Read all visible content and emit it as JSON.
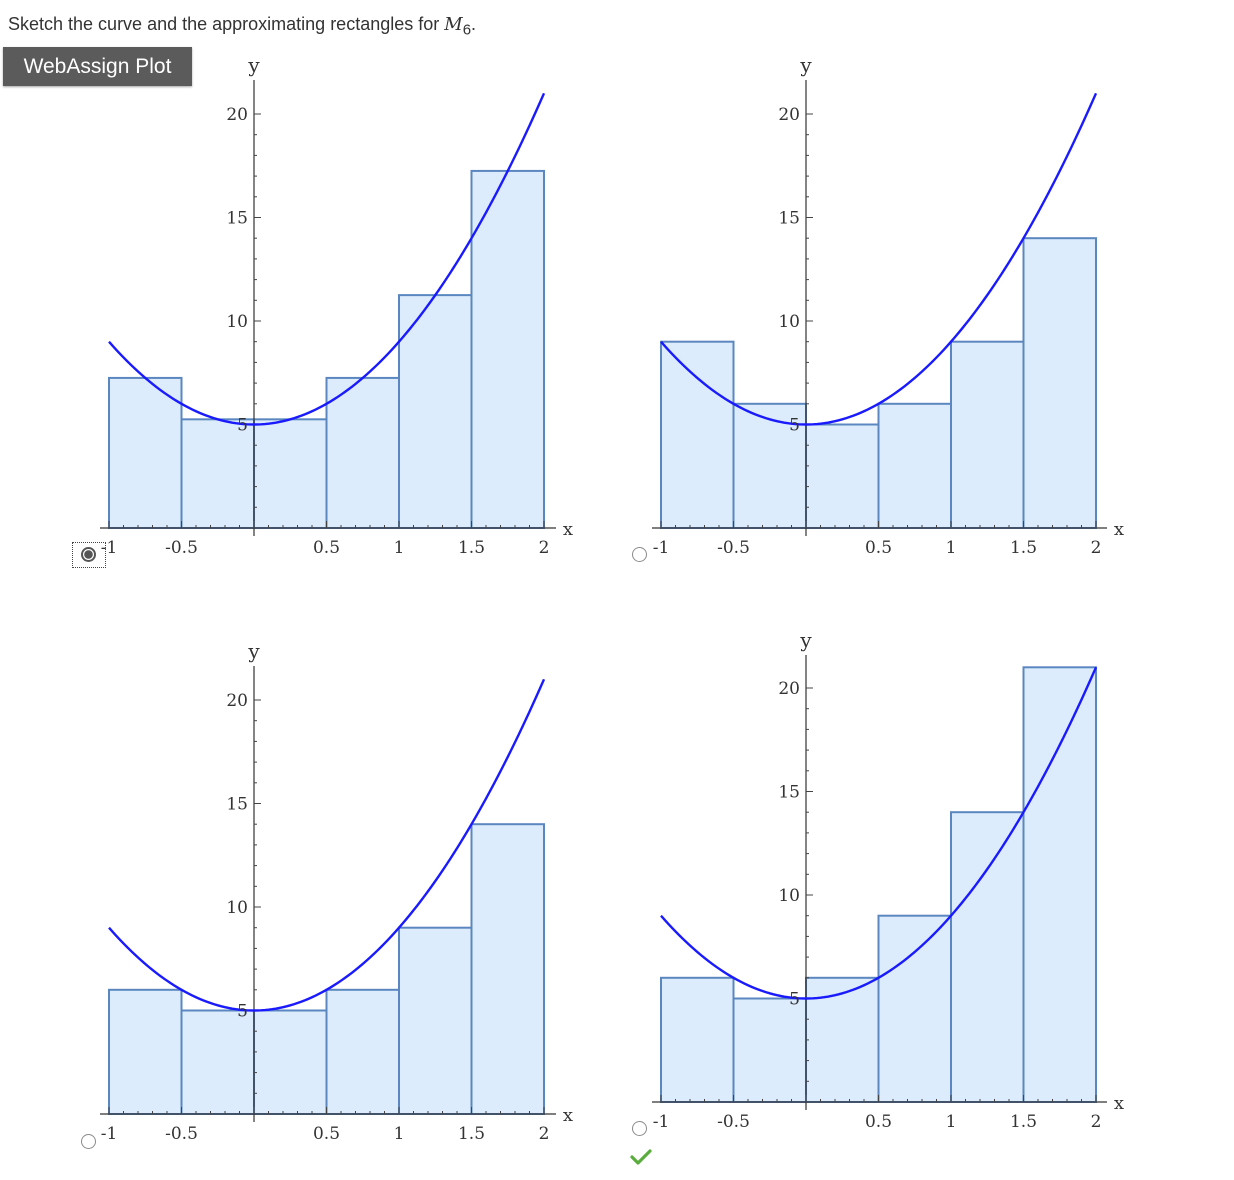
{
  "prompt": {
    "text": "Sketch the curve and the approximating rectangles for ",
    "symbol": "M",
    "subscript": "6",
    "end": "."
  },
  "toolbar": {
    "plot_button_label": "WebAssign Plot"
  },
  "options": [
    {
      "selected": true,
      "correct": false
    },
    {
      "selected": false,
      "correct": false
    },
    {
      "selected": false,
      "correct": false
    },
    {
      "selected": false,
      "correct": true
    }
  ],
  "chart_data": [
    {
      "type": "bar",
      "xlabel": "x",
      "ylabel": "y",
      "xlim": [
        -1,
        2
      ],
      "ylim": [
        0,
        20
      ],
      "x_ticks": [
        "-1",
        "-0.5",
        "0.5",
        "1",
        "1.5",
        "2"
      ],
      "y_ticks": [
        "5",
        "10",
        "15",
        "20"
      ],
      "bin_edges": [
        -1,
        -0.5,
        0,
        0.5,
        1,
        1.5,
        2
      ],
      "values": [
        7.25,
        5.25,
        5.25,
        7.25,
        11.25,
        17.25
      ],
      "curve": "y = 4x^2 + 5",
      "curve_color": "#1a1aff",
      "bar_fill": "#dcecfd",
      "bar_edge": "#5b87c0"
    },
    {
      "type": "bar",
      "xlabel": "x",
      "ylabel": "y",
      "xlim": [
        -1,
        2
      ],
      "ylim": [
        0,
        20
      ],
      "x_ticks": [
        "-1",
        "-0.5",
        "0.5",
        "1",
        "1.5",
        "2"
      ],
      "y_ticks": [
        "5",
        "10",
        "15",
        "20"
      ],
      "bin_edges": [
        -1,
        -0.5,
        0,
        0.5,
        1,
        1.5,
        2
      ],
      "values": [
        9,
        6,
        5,
        6,
        9,
        14
      ],
      "curve": "y = 4x^2 + 5",
      "curve_color": "#1a1aff",
      "bar_fill": "#dcecfd",
      "bar_edge": "#5b87c0"
    },
    {
      "type": "bar",
      "xlabel": "x",
      "ylabel": "y",
      "xlim": [
        -1,
        2
      ],
      "ylim": [
        0,
        20
      ],
      "x_ticks": [
        "-1",
        "-0.5",
        "0.5",
        "1",
        "1.5",
        "2"
      ],
      "y_ticks": [
        "5",
        "10",
        "15",
        "20"
      ],
      "bin_edges": [
        -1,
        -0.5,
        0,
        0.5,
        1,
        1.5,
        2
      ],
      "values": [
        6,
        5,
        5,
        6,
        9,
        14
      ],
      "curve": "y = 4x^2 + 5",
      "curve_color": "#1a1aff",
      "bar_fill": "#dcecfd",
      "bar_edge": "#5b87c0"
    },
    {
      "type": "bar",
      "xlabel": "x",
      "ylabel": "y",
      "xlim": [
        -1,
        2
      ],
      "ylim": [
        0,
        20
      ],
      "x_ticks": [
        "-1",
        "-0.5",
        "0.5",
        "1",
        "1.5",
        "2"
      ],
      "y_ticks": [
        "5",
        "10",
        "15",
        "20"
      ],
      "bin_edges": [
        -1,
        -0.5,
        0,
        0.5,
        1,
        1.5,
        2
      ],
      "values": [
        6,
        5,
        6,
        9,
        14,
        21
      ],
      "curve": "y = 4x^2 + 5",
      "curve_color": "#1a1aff",
      "bar_fill": "#dcecfd",
      "bar_edge": "#5b87c0"
    }
  ]
}
